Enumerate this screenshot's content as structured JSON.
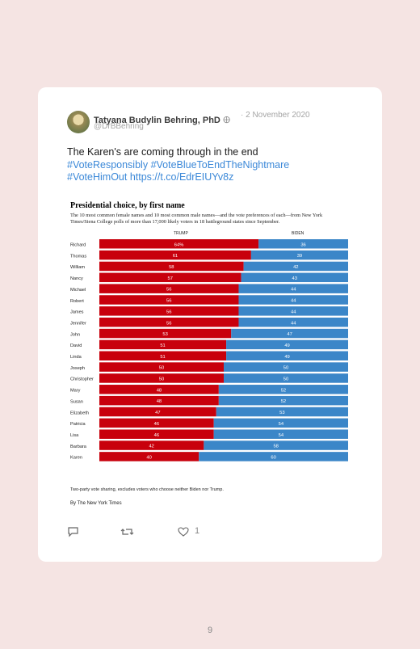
{
  "tweet": {
    "author_name": "Tatyana Budylin Behring, PhD",
    "verified_mark": "🜨",
    "date": "· 2 November 2020",
    "handle": "@DrBBehring",
    "text_line1": "The Karen's are coming through in the end",
    "tag1": "#VoteResponsibly",
    "tag2": "#VoteBlueToEndTheNightmare",
    "tag3": "#VoteHimOut",
    "link": "https://t.co/EdrEIUYv8z",
    "like_count": "1"
  },
  "chart_data": {
    "type": "bar",
    "stacked": true,
    "title": "Presidential choice, by first name",
    "subtitle": "The 10 most common female names and 10 most common male names—and the vote preferences of each—from New York Times/Siena College polls of more than 17,000 likely voters in 18 battleground states since September.",
    "column_headers": [
      "TRUMP",
      "BIDEN"
    ],
    "categories": [
      "Richard",
      "Thomas",
      "William",
      "Nancy",
      "Michael",
      "Robert",
      "James",
      "Jennifer",
      "John",
      "David",
      "Linda",
      "Joseph",
      "Christopher",
      "Mary",
      "Susan",
      "Elizabeth",
      "Patricia",
      "Lisa",
      "Barbara",
      "Karen"
    ],
    "series": [
      {
        "name": "TRUMP",
        "color": "#c8000c",
        "values": [
          64,
          61,
          58,
          57,
          56,
          56,
          56,
          56,
          53,
          51,
          51,
          50,
          50,
          48,
          48,
          47,
          46,
          46,
          42,
          40
        ]
      },
      {
        "name": "BIDEN",
        "color": "#3b86c8",
        "values": [
          36,
          39,
          42,
          43,
          44,
          44,
          44,
          44,
          47,
          49,
          49,
          50,
          50,
          52,
          52,
          53,
          54,
          54,
          58,
          60
        ]
      }
    ],
    "value_labels_first": "64%",
    "ylim": [
      0,
      100
    ],
    "note": "Two-party vote sharing, excludes voters who choose neither Biden nor Trump.",
    "byline": "By The New York Times"
  },
  "page": {
    "number": "9"
  }
}
